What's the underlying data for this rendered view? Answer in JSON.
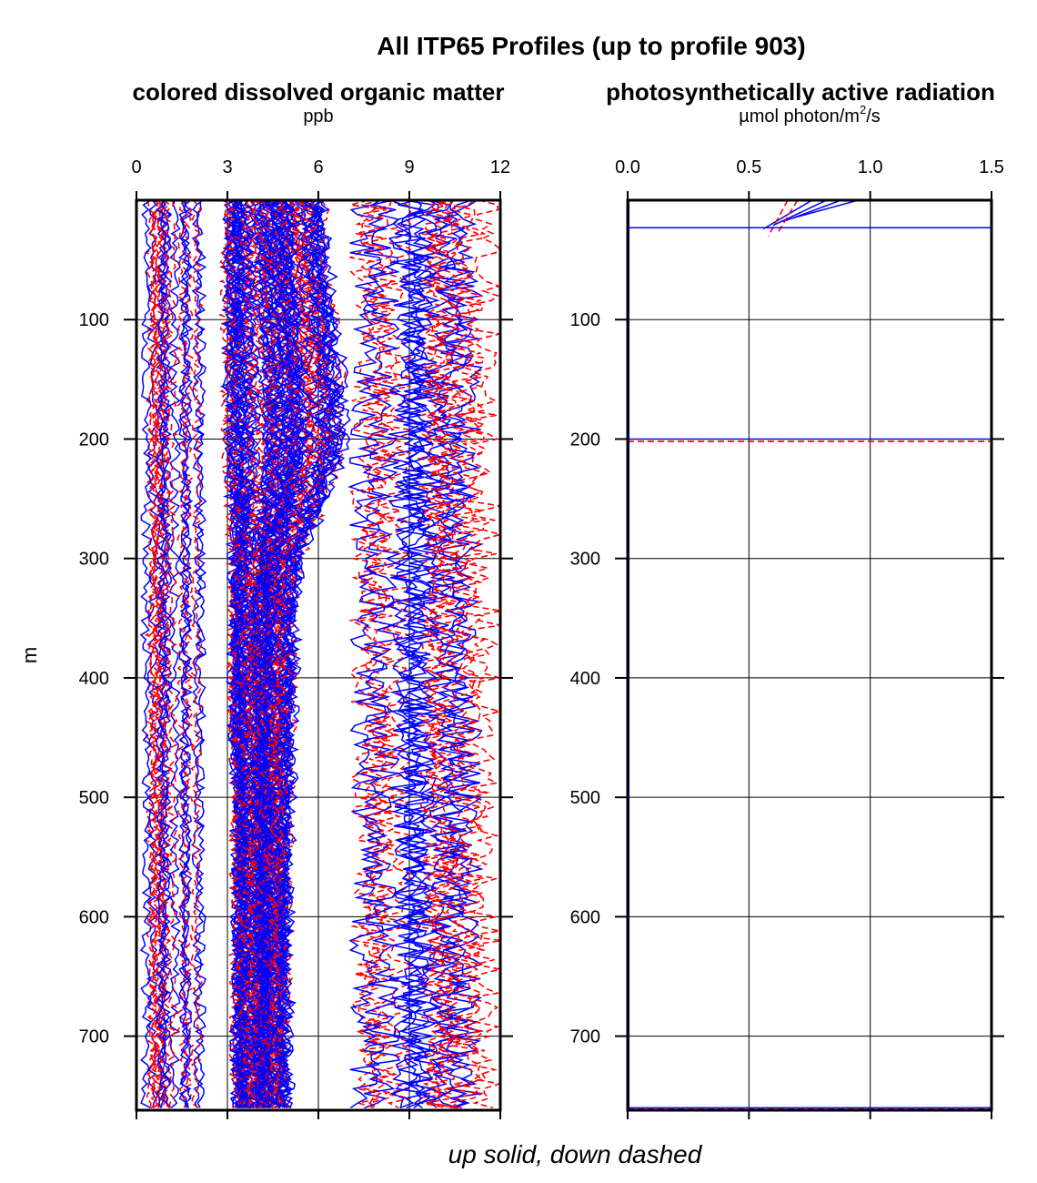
{
  "chart_data": {
    "title": "All ITP65 Profiles (up to profile 903)",
    "caption": "up solid, down dashed",
    "ylabel": "m",
    "y_reversed": true,
    "ylim": [
      0,
      762
    ],
    "yticks": [
      100,
      200,
      300,
      400,
      500,
      600,
      700
    ],
    "legend": [
      {
        "name": "up",
        "style": "solid",
        "color": "#0000ff"
      },
      {
        "name": "down",
        "style": "dashed",
        "color": "#ff0000"
      }
    ],
    "panels": [
      {
        "type": "line",
        "title": "colored dissolved organic matter",
        "unit": "ppb",
        "xlim": [
          0,
          12
        ],
        "xticks": [
          "0",
          "3",
          "6",
          "9",
          "12"
        ],
        "grid": true,
        "profile_envelope": {
          "depth": [
            0,
            50,
            100,
            150,
            200,
            250,
            300,
            350,
            400,
            450,
            500,
            550,
            600,
            650,
            700,
            762
          ],
          "core_low": [
            3.0,
            3.0,
            3.0,
            3.0,
            3.0,
            3.1,
            3.2,
            3.2,
            3.2,
            3.2,
            3.3,
            3.3,
            3.3,
            3.3,
            3.3,
            3.3
          ],
          "core_high": [
            6.2,
            6.3,
            6.6,
            6.8,
            6.9,
            6.3,
            5.4,
            5.2,
            5.2,
            5.1,
            5.1,
            5.0,
            5.0,
            5.0,
            5.0,
            5.0
          ],
          "outlier_low": [
            0.0,
            0.0,
            0.0,
            0.0,
            0.0,
            0.3,
            0.5,
            0.6,
            0.6,
            0.5,
            0.5,
            0.5,
            0.5,
            0.5,
            0.5,
            0.5
          ],
          "outlier_high": [
            12,
            12,
            12,
            12,
            12,
            12,
            12,
            12,
            12,
            12,
            12,
            12,
            12,
            12,
            12,
            12
          ]
        }
      },
      {
        "type": "line",
        "title": "photosynthetically active radiation",
        "unit_prefix": "µmol photon/m",
        "unit_sup": "2",
        "unit_suffix": "/s",
        "xlim": [
          0.0,
          1.5
        ],
        "xticks": [
          "0.0",
          "0.5",
          "1.0",
          "1.5"
        ],
        "grid": true,
        "profiles": {
          "surface_up": [
            {
              "depth": [
                0,
                15
              ],
              "value": [
                0.95,
                0.68
              ]
            },
            {
              "depth": [
                0,
                18
              ],
              "value": [
                0.88,
                0.64
              ]
            },
            {
              "depth": [
                0,
                21
              ],
              "value": [
                0.82,
                0.6
              ]
            },
            {
              "depth": [
                0,
                24
              ],
              "value": [
                0.76,
                0.56
              ]
            }
          ],
          "surface_down": [
            {
              "depth": [
                0,
                27
              ],
              "value": [
                0.7,
                0.62
              ]
            },
            {
              "depth": [
                0,
                30
              ],
              "value": [
                0.66,
                0.58
              ]
            }
          ],
          "flat_up_depths": [
            23,
            200,
            760,
            762
          ],
          "flat_down_depths": [
            202,
            761
          ]
        }
      }
    ]
  }
}
